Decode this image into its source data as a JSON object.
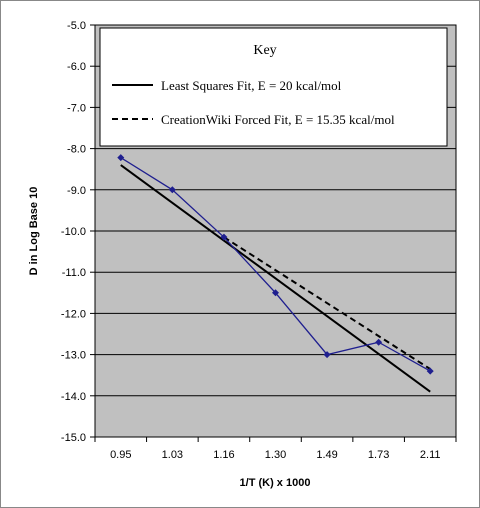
{
  "chart_data": {
    "type": "line",
    "xlabel": "1/T (K) x 1000",
    "ylabel": "D in Log Base 10",
    "categories": [
      "0.95",
      "1.03",
      "1.16",
      "1.30",
      "1.49",
      "1.73",
      "2.11"
    ],
    "ylim": [
      -15.0,
      -5.0
    ],
    "yticks": [
      "-5.0",
      "-6.0",
      "-7.0",
      "-8.0",
      "-9.0",
      "-10.0",
      "-11.0",
      "-12.0",
      "-13.0",
      "-14.0",
      "-15.0"
    ],
    "grid": true,
    "legend": {
      "title": "Key",
      "placement": "top-right"
    },
    "series": [
      {
        "key": "data",
        "values": [
          -8.22,
          -9.0,
          -10.15,
          -11.5,
          -13.0,
          -12.7,
          -13.4
        ],
        "color": "#1f1f8f",
        "style": "solid-with-markers"
      },
      {
        "key": "least_squares",
        "name": "Least Squares Fit, E = 20 kcal/mol",
        "x": [
          0.95,
          2.11
        ],
        "values": [
          -8.4,
          -13.9
        ],
        "color": "#000000",
        "style": "solid"
      },
      {
        "key": "forced_fit",
        "name": "CreationWiki Forced Fit, E = 15.35 kcal/mol",
        "x": [
          1.16,
          2.11
        ],
        "values": [
          -10.15,
          -13.35
        ],
        "color": "#000000",
        "style": "dashed"
      }
    ]
  },
  "colors": {
    "plot_background": "#c0c0c0",
    "grid": "#000000",
    "frame": "#000000"
  }
}
